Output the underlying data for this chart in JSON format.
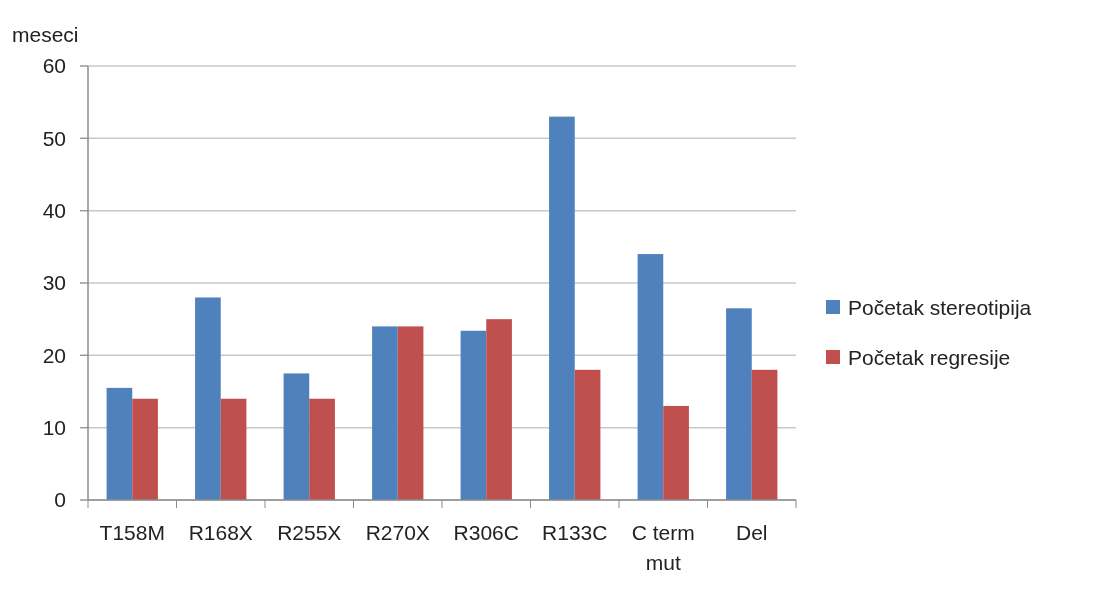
{
  "chart_data": {
    "type": "bar",
    "ylabel": "meseci",
    "categories": [
      "T158M",
      "R168X",
      "R255X",
      "R270X",
      "R306C",
      "R133C",
      "C term mut",
      "Del"
    ],
    "series": [
      {
        "name": "Početak stereotipija",
        "color": "#4f81bd",
        "values": [
          15.5,
          28,
          17.5,
          24,
          23.4,
          53,
          34,
          26.5
        ]
      },
      {
        "name": "Početak regresije",
        "color": "#c0504d",
        "values": [
          14,
          14,
          14,
          24,
          25,
          18,
          13,
          18
        ]
      }
    ],
    "ylim": [
      0,
      60
    ],
    "yticks": [
      0,
      10,
      20,
      30,
      40,
      50,
      60
    ],
    "grid": "y",
    "legend": "right"
  }
}
